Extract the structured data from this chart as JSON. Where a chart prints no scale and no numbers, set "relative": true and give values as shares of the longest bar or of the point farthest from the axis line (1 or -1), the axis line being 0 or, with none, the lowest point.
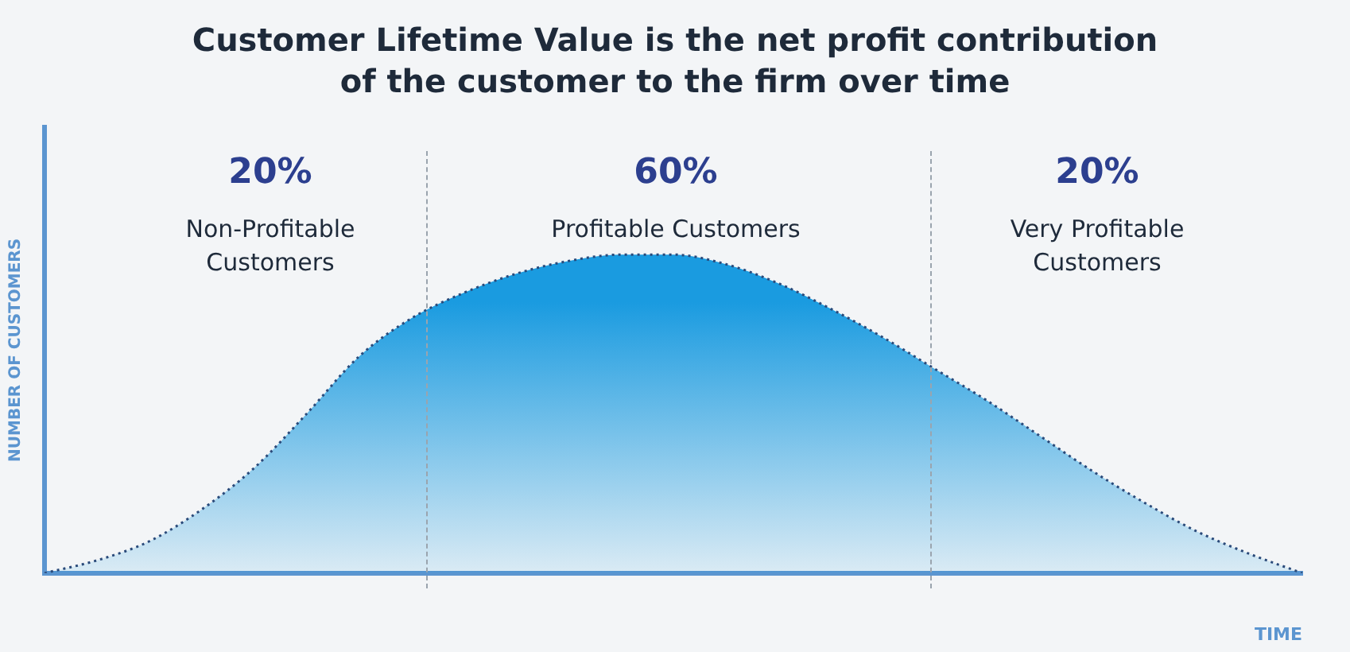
{
  "chart_data": {
    "type": "area",
    "title": "Customer Lifetime Value is the net profit contribution of the customer to the firm over time",
    "xlabel": "TIME",
    "ylabel": "NUMBER OF CUSTOMERS",
    "relative": true,
    "grid": false,
    "legend": false,
    "line_style": "dotted",
    "categories": [
      null,
      null,
      null,
      null,
      null,
      null,
      null,
      null,
      null,
      null,
      null,
      null,
      null,
      null,
      null,
      null,
      null,
      null,
      null,
      null,
      null,
      null,
      null,
      null,
      null
    ],
    "series": [
      {
        "color": "#1a9be0",
        "values": [
          0,
          0.04,
          0.1,
          0.2,
          0.33,
          0.5,
          0.68,
          0.8,
          0.88,
          0.94,
          0.98,
          1,
          1,
          0.97,
          0.91,
          0.83,
          0.74,
          0.64,
          0.54,
          0.43,
          0.32,
          0.22,
          0.13,
          0.06,
          0
        ]
      }
    ],
    "annotations": [
      "20%",
      "Non-Profitable Customers",
      "60%",
      "Profitable Customers",
      "20%",
      "Very Profitable Customers"
    ]
  }
}
